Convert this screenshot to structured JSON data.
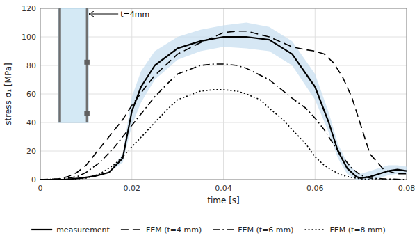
{
  "chart_data": {
    "type": "line",
    "xlabel": "time [s]",
    "ylabel": "stress σ₁ [MPa]",
    "xlim": [
      0,
      0.08
    ],
    "ylim": [
      0,
      120
    ],
    "xticks": [
      0,
      0.02,
      0.04,
      0.06,
      0.08
    ],
    "yticks": [
      0,
      20,
      40,
      60,
      80,
      100,
      120
    ],
    "grid": true,
    "legend": "bottom",
    "series": [
      {
        "name": "measurement",
        "color": "#000000",
        "line_style": "solid",
        "x": [
          0.0,
          0.005,
          0.007,
          0.009,
          0.01,
          0.012,
          0.015,
          0.018,
          0.02,
          0.022,
          0.025,
          0.03,
          0.035,
          0.04,
          0.045,
          0.05,
          0.055,
          0.06,
          0.063,
          0.065,
          0.067,
          0.069,
          0.07,
          0.072,
          0.074,
          0.076,
          0.078,
          0.08
        ],
        "values": [
          0.0,
          0.0,
          0.5,
          1.0,
          1.5,
          2.5,
          5.0,
          15.0,
          48.0,
          65.0,
          80.0,
          92.0,
          97.0,
          100.0,
          100.0,
          98.0,
          88.0,
          65.0,
          40.0,
          20.0,
          8.0,
          2.0,
          1.0,
          2.0,
          4.0,
          6.0,
          7.0,
          6.0
        ],
        "upper": [
          0.0,
          0.0,
          0.5,
          1.0,
          1.5,
          2.5,
          5.0,
          18.0,
          58.0,
          76.0,
          90.0,
          100.0,
          105.0,
          108.0,
          110.0,
          107.0,
          97.0,
          74.0,
          47.0,
          25.0,
          12.0,
          5.0,
          4.0,
          6.0,
          8.0,
          10.0,
          10.0,
          9.0
        ],
        "lower": [
          0.0,
          0.0,
          0.5,
          1.0,
          1.5,
          2.5,
          5.0,
          12.0,
          38.0,
          54.0,
          70.0,
          84.0,
          90.0,
          93.0,
          92.0,
          90.0,
          80.0,
          56.0,
          33.0,
          15.0,
          4.0,
          0.0,
          0.0,
          0.0,
          1.0,
          3.0,
          4.0,
          4.0
        ]
      },
      {
        "name": "FEM (t=4 mm)",
        "color": "#000000",
        "line_style": "dashed",
        "x": [
          0.0,
          0.004,
          0.006,
          0.008,
          0.01,
          0.012,
          0.015,
          0.018,
          0.02,
          0.023,
          0.025,
          0.028,
          0.03,
          0.035,
          0.038,
          0.04,
          0.043,
          0.045,
          0.05,
          0.055,
          0.058,
          0.06,
          0.062,
          0.064,
          0.066,
          0.068,
          0.07,
          0.072,
          0.075,
          0.078,
          0.08
        ],
        "values": [
          0.0,
          0.5,
          2.0,
          5.0,
          10.0,
          18.0,
          30.0,
          42.0,
          52.0,
          65.0,
          73.0,
          82.0,
          88.0,
          96.0,
          100.0,
          103.0,
          104.0,
          104.0,
          100.0,
          93.0,
          91.0,
          90.0,
          88.0,
          82.0,
          72.0,
          58.0,
          38.0,
          18.0,
          7.0,
          4.0,
          4.0
        ]
      },
      {
        "name": "FEM (t=6 mm)",
        "color": "#000000",
        "line_style": "dashdot",
        "x": [
          0.0,
          0.005,
          0.008,
          0.01,
          0.013,
          0.016,
          0.018,
          0.02,
          0.023,
          0.025,
          0.028,
          0.03,
          0.035,
          0.038,
          0.04,
          0.043,
          0.045,
          0.05,
          0.055,
          0.058,
          0.06,
          0.062,
          0.064,
          0.066,
          0.068,
          0.07,
          0.072,
          0.075,
          0.08
        ],
        "values": [
          0.0,
          0.5,
          2.0,
          5.0,
          12.0,
          22.0,
          30.0,
          38.0,
          50.0,
          58.0,
          68.0,
          74.0,
          80.0,
          81.0,
          81.0,
          80.0,
          78.0,
          70.0,
          57.0,
          50.0,
          43.0,
          35.0,
          25.0,
          16.0,
          8.0,
          3.0,
          1.0,
          0.5,
          0.0
        ]
      },
      {
        "name": "FEM (t=8 mm)",
        "color": "#000000",
        "line_style": "dotted",
        "x": [
          0.0,
          0.005,
          0.008,
          0.01,
          0.013,
          0.016,
          0.018,
          0.02,
          0.023,
          0.025,
          0.028,
          0.03,
          0.035,
          0.038,
          0.04,
          0.043,
          0.045,
          0.048,
          0.05,
          0.053,
          0.055,
          0.058,
          0.06,
          0.062,
          0.064,
          0.066,
          0.068,
          0.07,
          0.072,
          0.075,
          0.08
        ],
        "values": [
          0.0,
          0.0,
          0.5,
          1.0,
          4.0,
          10.0,
          16.0,
          23.0,
          33.0,
          40.0,
          50.0,
          56.0,
          62.0,
          63.0,
          63.0,
          62.0,
          60.0,
          56.0,
          50.0,
          42.0,
          35.0,
          25.0,
          16.0,
          10.0,
          6.0,
          3.0,
          1.5,
          0.5,
          0.0,
          0.0,
          0.0
        ]
      }
    ],
    "annotations": [
      {
        "text": "t=4mm"
      }
    ]
  }
}
